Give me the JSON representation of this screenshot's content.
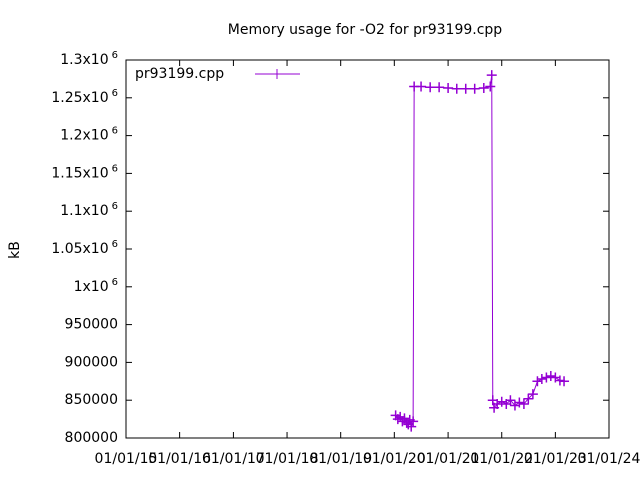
{
  "chart_data": {
    "type": "line",
    "title": "Memory usage for -O2 for pr93199.cpp",
    "y_label": "kB",
    "xlim": [
      "2015-01-01",
      "2024-01-01"
    ],
    "xticks": [
      {
        "value": "2015-01-01",
        "label": "01/01/15"
      },
      {
        "value": "2016-01-01",
        "label": "01/01/16"
      },
      {
        "value": "2017-01-01",
        "label": "01/01/17"
      },
      {
        "value": "2018-01-01",
        "label": "01/01/18"
      },
      {
        "value": "2019-01-01",
        "label": "01/01/19"
      },
      {
        "value": "2020-01-01",
        "label": "01/01/20"
      },
      {
        "value": "2021-01-01",
        "label": "01/01/21"
      },
      {
        "value": "2022-01-01",
        "label": "01/01/22"
      },
      {
        "value": "2023-01-01",
        "label": "01/01/23"
      },
      {
        "value": "2024-01-01",
        "label": "01/01/24"
      }
    ],
    "ylim": [
      800000,
      1300000
    ],
    "yticks": [
      800000,
      850000,
      900000,
      950000,
      {
        "value": 1000000,
        "label": "1x10",
        "exp": "6"
      },
      {
        "value": 1050000,
        "label": "1.05x10",
        "exp": "6"
      },
      {
        "value": 1100000,
        "label": "1.1x10",
        "exp": "6"
      },
      {
        "value": 1150000,
        "label": "1.15x10",
        "exp": "6"
      },
      {
        "value": 1200000,
        "label": "1.2x10",
        "exp": "6"
      },
      {
        "value": 1250000,
        "label": "1.25x10",
        "exp": "6"
      },
      {
        "value": 1300000,
        "label": "1.3x10",
        "exp": "6"
      }
    ],
    "legend": "top-left",
    "x": [
      "2020-01-10",
      "2020-01-25",
      "2020-02-10",
      "2020-02-25",
      "2020-03-10",
      "2020-03-25",
      "2020-04-05",
      "2020-04-15",
      "2020-04-25",
      "2020-05-08",
      "2020-05-15",
      "2020-07-01",
      "2020-09-01",
      "2020-11-01",
      "2021-01-01",
      "2021-03-01",
      "2021-05-01",
      "2021-07-01",
      "2021-09-01",
      "2021-10-15",
      "2021-10-25",
      "2021-11-01",
      "2021-11-10",
      "2021-12-01",
      "2022-01-01",
      "2022-02-01",
      "2022-03-01",
      "2022-04-01",
      "2022-05-01",
      "2022-06-01",
      "2022-07-01",
      "2022-08-01",
      "2022-09-01",
      "2022-10-01",
      "2022-11-01",
      "2022-12-01",
      "2023-01-01",
      "2023-02-01",
      "2023-03-01"
    ],
    "series": [
      {
        "name": "pr93199.cpp",
        "color": "#9400d3",
        "values": [
          830000,
          825000,
          828000,
          822000,
          826000,
          820000,
          818000,
          824000,
          815000,
          822000,
          1265000,
          1265000,
          1264000,
          1264000,
          1263000,
          1262000,
          1262000,
          1262000,
          1263000,
          1265000,
          1280000,
          850000,
          840000,
          845000,
          848000,
          845000,
          850000,
          843000,
          847000,
          845000,
          852000,
          858000,
          875000,
          878000,
          880000,
          882000,
          880000,
          876000,
          875000
        ]
      }
    ]
  }
}
